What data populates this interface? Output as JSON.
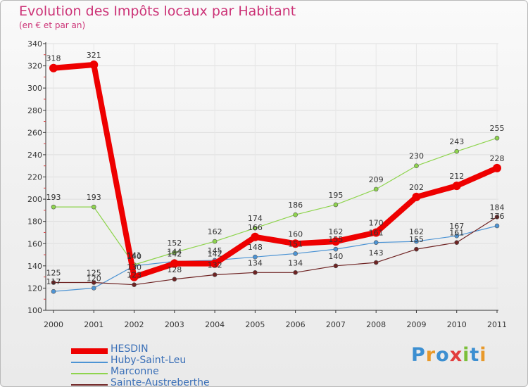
{
  "title": "Evolution des Impôts locaux par Habitant",
  "subtitle": "(en € et par an)",
  "logo": {
    "letters": [
      {
        "ch": "P",
        "color": "#3c8fd1"
      },
      {
        "ch": "r",
        "color": "#e8992a"
      },
      {
        "ch": "o",
        "color": "#3c8fd1"
      },
      {
        "ch": "x",
        "color": "#e23c3c"
      },
      {
        "ch": "i",
        "color": "#7bbf3a"
      },
      {
        "ch": "t",
        "color": "#3c8fd1"
      },
      {
        "ch": "i",
        "color": "#e8992a"
      }
    ]
  },
  "chart_data": {
    "type": "line",
    "title": "Evolution des Impôts locaux par Habitant",
    "subtitle": "(en € et par an)",
    "xlabel": "",
    "ylabel": "",
    "x": [
      "2000",
      "2001",
      "2002",
      "2003",
      "2004",
      "2005",
      "2006",
      "2007",
      "2008",
      "2009",
      "2010",
      "2011"
    ],
    "ylim": [
      100,
      340
    ],
    "yticks": [
      100,
      120,
      140,
      160,
      180,
      200,
      220,
      240,
      260,
      280,
      300,
      320,
      340
    ],
    "legend_position": "bottom-left",
    "series": [
      {
        "name": "HESDIN",
        "color": "#ee0000",
        "values": [
          318,
          321,
          130,
          142,
          142,
          166,
          160,
          162,
          170,
          202,
          212,
          228
        ]
      },
      {
        "name": "Huby-Saint-Leu",
        "color": "#4d94d4",
        "values": [
          117,
          120,
          140,
          144,
          145,
          148,
          151,
          155,
          161,
          162,
          167,
          176
        ]
      },
      {
        "name": "Marconne",
        "color": "#8ed44d",
        "values": [
          193,
          193,
          141,
          152,
          162,
          174,
          186,
          195,
          209,
          230,
          243,
          255
        ]
      },
      {
        "name": "Sainte-Austreberthe",
        "color": "#6e2323",
        "values": [
          125,
          125,
          123,
          128,
          132,
          134,
          134,
          140,
          143,
          155,
          161,
          184
        ]
      }
    ],
    "data_labels": {
      "HESDIN": [
        "318",
        "321",
        "130",
        "142",
        "142",
        "166",
        "160",
        "162",
        "170",
        "202",
        "212",
        "228"
      ],
      "Huby-Saint-Leu": [
        "117",
        "120",
        "140",
        "144",
        "145",
        "148",
        "151",
        "155",
        "161",
        "162",
        "167",
        "176"
      ],
      "Marconne": [
        "193",
        "193",
        "141",
        "152",
        "162",
        "174",
        "186",
        "195",
        "209",
        "230",
        "243",
        "255"
      ],
      "Sainte-Austreberthe": [
        "125",
        "125",
        "123",
        "128",
        "132",
        "134",
        "134",
        "140",
        "143",
        "155",
        "161",
        "184"
      ]
    }
  }
}
